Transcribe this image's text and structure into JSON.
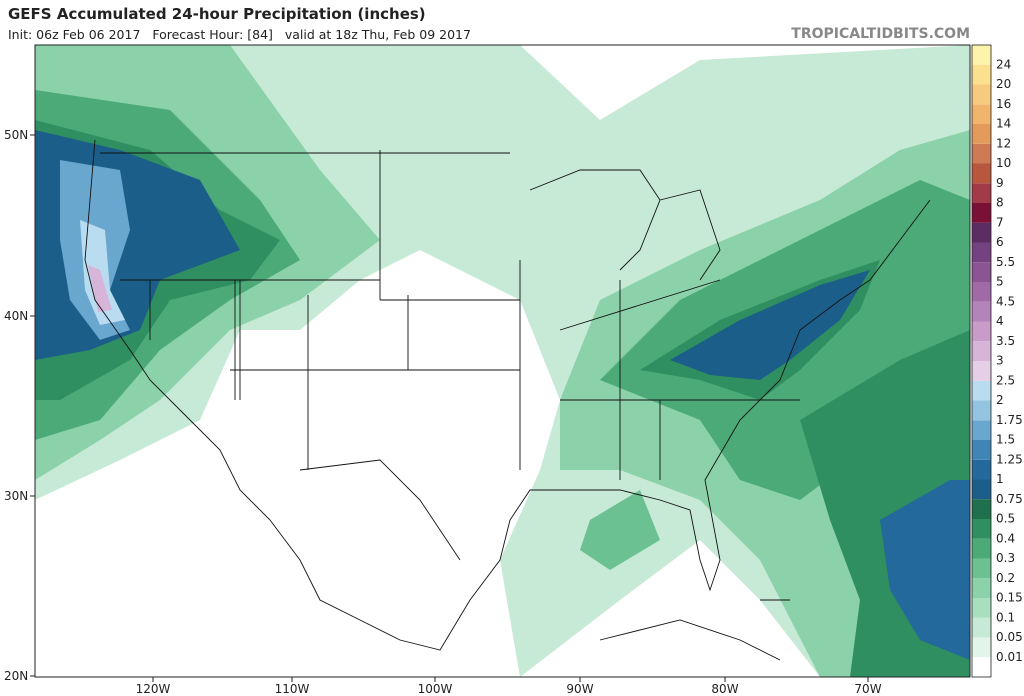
{
  "header": {
    "title": "GEFS Accumulated 24-hour Precipitation (inches)",
    "subtitle": "Init: 06z Feb 06 2017   Forecast Hour: [84]   valid at 18z Thu, Feb 09 2017",
    "brand": "TROPICALTIDBITS.COM"
  },
  "map": {
    "lat_labels": [
      "50N",
      "40N",
      "30N",
      "20N"
    ],
    "lon_labels": [
      "120W",
      "110W",
      "100W",
      "90W",
      "80W",
      "70W"
    ]
  },
  "colorbar": {
    "labels": [
      "0.01",
      "0.05",
      "0.1",
      "0.15",
      "0.2",
      "0.3",
      "0.4",
      "0.5",
      "0.75",
      "1",
      "1.25",
      "1.5",
      "1.75",
      "2",
      "2.5",
      "3",
      "3.5",
      "4",
      "4.5",
      "5",
      "5.5",
      "6",
      "7",
      "8",
      "9",
      "10",
      "12",
      "14",
      "16",
      "20",
      "24"
    ],
    "colors": [
      "#ffffff",
      "#e3f5ea",
      "#c6ead5",
      "#a7dfbf",
      "#8bd1a9",
      "#6cc193",
      "#4caa79",
      "#2f8f60",
      "#1f704c",
      "#1b5e89",
      "#23699b",
      "#3f86b6",
      "#6aa7cf",
      "#93c5e1",
      "#badcf0",
      "#e5cfe6",
      "#d6b5d9",
      "#c79cc9",
      "#b384b9",
      "#9f6aa6",
      "#8b5593",
      "#744280",
      "#5c2d62",
      "#7a1035",
      "#a33a48",
      "#b8573e",
      "#cd7a55",
      "#e39b5c",
      "#f0b56a",
      "#f7cb7e",
      "#fbe08e",
      "#fdf3aa"
    ]
  }
}
